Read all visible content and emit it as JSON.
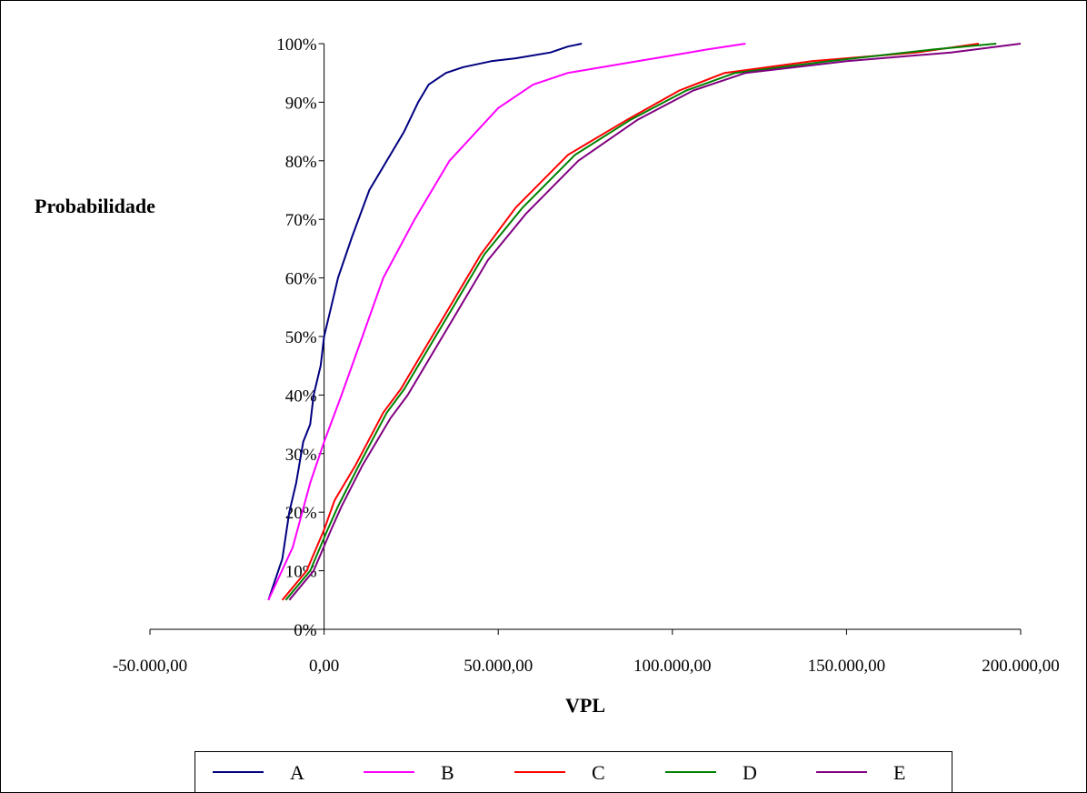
{
  "chart_data": {
    "type": "line",
    "title": "",
    "xlabel": "VPL",
    "ylabel": "Probabilidade",
    "xlim": [
      -50000,
      200000
    ],
    "ylim": [
      0,
      1
    ],
    "x_ticks": [
      -50000,
      0,
      50000,
      100000,
      150000,
      200000
    ],
    "x_tick_labels": [
      "-50.000,00",
      "0,00",
      "50.000,00",
      "100.000,00",
      "150.000,00",
      "200.000,00"
    ],
    "y_ticks": [
      0,
      0.1,
      0.2,
      0.3,
      0.4,
      0.5,
      0.6,
      0.7,
      0.8,
      0.9,
      1.0
    ],
    "y_tick_labels": [
      "0%",
      "10%",
      "20%",
      "30%",
      "40%",
      "50%",
      "60%",
      "70%",
      "80%",
      "90%",
      "100%"
    ],
    "grid": false,
    "legend_position": "bottom",
    "series": [
      {
        "name": "A",
        "color": "#000080",
        "points": [
          [
            -16000,
            0.05
          ],
          [
            -12000,
            0.12
          ],
          [
            -10000,
            0.2
          ],
          [
            -8000,
            0.25
          ],
          [
            -6000,
            0.32
          ],
          [
            -4000,
            0.35
          ],
          [
            -3000,
            0.4
          ],
          [
            -1000,
            0.45
          ],
          [
            0,
            0.5
          ],
          [
            2000,
            0.55
          ],
          [
            4000,
            0.6
          ],
          [
            8000,
            0.67
          ],
          [
            13000,
            0.75
          ],
          [
            18000,
            0.8
          ],
          [
            23000,
            0.85
          ],
          [
            27000,
            0.9
          ],
          [
            30000,
            0.93
          ],
          [
            35000,
            0.95
          ],
          [
            40000,
            0.96
          ],
          [
            48000,
            0.97
          ],
          [
            55000,
            0.975
          ],
          [
            65000,
            0.985
          ],
          [
            70000,
            0.995
          ],
          [
            74000,
            1.0
          ]
        ]
      },
      {
        "name": "B",
        "color": "#FF00FF",
        "points": [
          [
            -16000,
            0.05
          ],
          [
            -9000,
            0.14
          ],
          [
            -4000,
            0.25
          ],
          [
            0,
            0.32
          ],
          [
            5000,
            0.4
          ],
          [
            11000,
            0.5
          ],
          [
            17000,
            0.6
          ],
          [
            26000,
            0.7
          ],
          [
            36000,
            0.8
          ],
          [
            50000,
            0.89
          ],
          [
            60000,
            0.93
          ],
          [
            70000,
            0.95
          ],
          [
            85000,
            0.965
          ],
          [
            100000,
            0.98
          ],
          [
            110000,
            0.99
          ],
          [
            121000,
            1.0
          ]
        ]
      },
      {
        "name": "C",
        "color": "#FF0000",
        "points": [
          [
            -12000,
            0.05
          ],
          [
            -5000,
            0.1
          ],
          [
            0,
            0.17
          ],
          [
            3000,
            0.22
          ],
          [
            9000,
            0.28
          ],
          [
            17000,
            0.37
          ],
          [
            22000,
            0.41
          ],
          [
            35000,
            0.54
          ],
          [
            45000,
            0.64
          ],
          [
            55000,
            0.72
          ],
          [
            70000,
            0.81
          ],
          [
            87000,
            0.87
          ],
          [
            102000,
            0.92
          ],
          [
            115000,
            0.95
          ],
          [
            140000,
            0.97
          ],
          [
            170000,
            0.985
          ],
          [
            188000,
            1.0
          ]
        ]
      },
      {
        "name": "D",
        "color": "#008000",
        "points": [
          [
            -11000,
            0.05
          ],
          [
            -4000,
            0.1
          ],
          [
            1000,
            0.17
          ],
          [
            4000,
            0.21
          ],
          [
            10000,
            0.28
          ],
          [
            18000,
            0.37
          ],
          [
            23000,
            0.41
          ],
          [
            36000,
            0.54
          ],
          [
            46000,
            0.64
          ],
          [
            57000,
            0.72
          ],
          [
            72000,
            0.81
          ],
          [
            88000,
            0.87
          ],
          [
            104000,
            0.92
          ],
          [
            118000,
            0.95
          ],
          [
            145000,
            0.97
          ],
          [
            175000,
            0.99
          ],
          [
            193000,
            1.0
          ]
        ]
      },
      {
        "name": "E",
        "color": "#800080",
        "points": [
          [
            -10000,
            0.05
          ],
          [
            -3000,
            0.1
          ],
          [
            2000,
            0.17
          ],
          [
            5000,
            0.21
          ],
          [
            11000,
            0.28
          ],
          [
            19000,
            0.36
          ],
          [
            24000,
            0.4
          ],
          [
            37000,
            0.53
          ],
          [
            47000,
            0.63
          ],
          [
            58000,
            0.71
          ],
          [
            73000,
            0.8
          ],
          [
            90000,
            0.87
          ],
          [
            106000,
            0.92
          ],
          [
            121000,
            0.95
          ],
          [
            150000,
            0.97
          ],
          [
            180000,
            0.985
          ],
          [
            200000,
            1.0
          ]
        ]
      }
    ]
  }
}
